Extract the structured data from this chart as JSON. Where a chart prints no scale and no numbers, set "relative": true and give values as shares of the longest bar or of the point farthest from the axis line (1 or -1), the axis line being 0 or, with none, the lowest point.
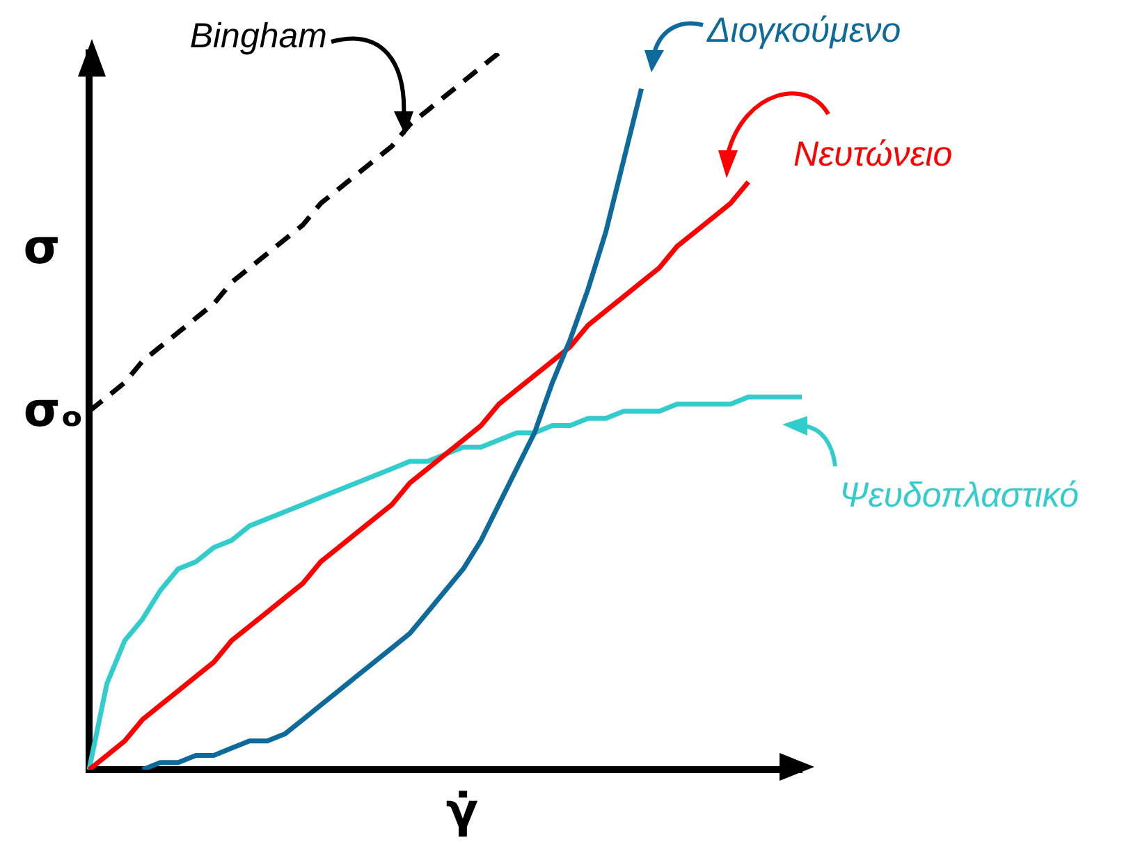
{
  "chart_data": {
    "type": "line",
    "relative": true,
    "xlabel": "γ̇",
    "ylabel": "σ",
    "marker": "none",
    "legend": "top right",
    "annotations": [
      "σₒ"
    ],
    "categories": [
      null,
      null,
      null,
      null,
      null,
      null,
      null,
      null,
      null,
      null,
      null,
      null,
      null,
      null,
      null,
      null,
      null,
      null,
      null,
      null,
      null,
      null,
      null,
      null,
      null,
      null,
      null,
      null,
      null,
      null,
      null,
      null,
      null,
      null,
      null,
      null,
      null,
      null,
      null,
      null,
      null
    ],
    "series": [
      {
        "name": "Bingham",
        "color": "#000000",
        "line_style": "dashed",
        "values": [
          0.5,
          0.52,
          0.54,
          0.57,
          0.59,
          0.61,
          0.63,
          0.65,
          0.68,
          0.7,
          0.72,
          0.74,
          0.76,
          0.79,
          0.81,
          0.83,
          0.85,
          0.87,
          0.9,
          0.92,
          0.94,
          0.96,
          0.98,
          1.0,
          null,
          null,
          null,
          null,
          null,
          null,
          null,
          null,
          null,
          null,
          null,
          null,
          null,
          null,
          null,
          null,
          null
        ]
      },
      {
        "name": "Διογκούμενο",
        "color": "#0f6a9c",
        "values": [
          null,
          null,
          null,
          0,
          0.01,
          0.01,
          0.02,
          0.02,
          0.03,
          0.04,
          0.04,
          0.05,
          0.07,
          0.09,
          0.11,
          0.13,
          0.15,
          0.17,
          0.19,
          0.22,
          0.25,
          0.28,
          0.32,
          0.37,
          0.42,
          0.47,
          0.54,
          0.6,
          0.67,
          0.75,
          0.85,
          0.95,
          null,
          null,
          null,
          null,
          null,
          null,
          null,
          null,
          null
        ]
      },
      {
        "name": "Νευτώνειο",
        "color": "#ff0000",
        "values": [
          0,
          0.02,
          0.04,
          0.07,
          0.09,
          0.11,
          0.13,
          0.15,
          0.18,
          0.2,
          0.22,
          0.24,
          0.26,
          0.29,
          0.31,
          0.33,
          0.35,
          0.37,
          0.4,
          0.42,
          0.44,
          0.46,
          0.48,
          0.51,
          0.53,
          0.55,
          0.57,
          0.59,
          0.62,
          0.64,
          0.66,
          0.68,
          0.7,
          0.73,
          0.75,
          0.77,
          0.79,
          0.82,
          null,
          null,
          null
        ]
      },
      {
        "name": "Ψευδοπλαστικό",
        "color": "#33cccc",
        "values": [
          0,
          0.12,
          0.18,
          0.21,
          0.25,
          0.28,
          0.29,
          0.31,
          0.32,
          0.34,
          0.35,
          0.36,
          0.37,
          0.38,
          0.39,
          0.4,
          0.41,
          0.42,
          0.43,
          0.43,
          0.44,
          0.45,
          0.45,
          0.46,
          0.47,
          0.47,
          0.48,
          0.48,
          0.49,
          0.49,
          0.5,
          0.5,
          0.5,
          0.51,
          0.51,
          0.51,
          0.51,
          0.52,
          0.52,
          0.52,
          0.52
        ]
      }
    ]
  }
}
